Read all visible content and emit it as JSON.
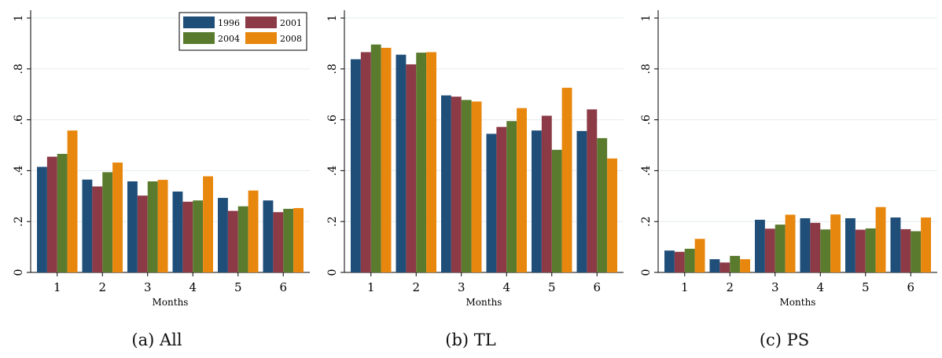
{
  "colors": {
    "1996": "#1f4e79",
    "2001": "#8b3a46",
    "2004": "#5a7a2e",
    "2008": "#e8870e"
  },
  "chart_data": [
    {
      "type": "bar",
      "caption_label": "a",
      "caption_text": "All",
      "xlabel": "Months",
      "ylabel": "",
      "ylim": [
        0,
        1
      ],
      "yticks": [
        "0",
        ".2",
        ".4",
        ".6",
        ".8",
        "1"
      ],
      "categories": [
        "1",
        "2",
        "3",
        "4",
        "5",
        "6"
      ],
      "legend_position": "top-right",
      "series": [
        {
          "name": "1996",
          "values": [
            0.415,
            0.365,
            0.358,
            0.318,
            0.293,
            0.283
          ]
        },
        {
          "name": "2001",
          "values": [
            0.455,
            0.338,
            0.302,
            0.278,
            0.242,
            0.237
          ]
        },
        {
          "name": "2004",
          "values": [
            0.466,
            0.394,
            0.358,
            0.283,
            0.26,
            0.25
          ]
        },
        {
          "name": "2008",
          "values": [
            0.558,
            0.432,
            0.364,
            0.378,
            0.322,
            0.253
          ]
        }
      ]
    },
    {
      "type": "bar",
      "caption_label": "b",
      "caption_text": "TL",
      "xlabel": "Months",
      "ylabel": "",
      "ylim": [
        0,
        1
      ],
      "yticks": [
        "0",
        ".2",
        ".4",
        ".6",
        ".8",
        "1"
      ],
      "categories": [
        "1",
        "2",
        "3",
        "4",
        "5",
        "6"
      ],
      "series": [
        {
          "name": "1996",
          "values": [
            0.838,
            0.856,
            0.696,
            0.545,
            0.558,
            0.556
          ]
        },
        {
          "name": "2001",
          "values": [
            0.866,
            0.818,
            0.691,
            0.572,
            0.616,
            0.641
          ]
        },
        {
          "name": "2004",
          "values": [
            0.896,
            0.864,
            0.678,
            0.595,
            0.482,
            0.528
          ]
        },
        {
          "name": "2008",
          "values": [
            0.883,
            0.866,
            0.672,
            0.646,
            0.726,
            0.448
          ]
        }
      ]
    },
    {
      "type": "bar",
      "caption_label": "c",
      "caption_text": "PS",
      "xlabel": "Months",
      "ylabel": "",
      "ylim": [
        0,
        1
      ],
      "yticks": [
        "0",
        ".2",
        ".4",
        ".6",
        ".8",
        "1"
      ],
      "categories": [
        "1",
        "2",
        "3",
        "4",
        "5",
        "6"
      ],
      "series": [
        {
          "name": "1996",
          "values": [
            0.086,
            0.052,
            0.207,
            0.213,
            0.213,
            0.216
          ]
        },
        {
          "name": "2001",
          "values": [
            0.081,
            0.039,
            0.172,
            0.195,
            0.168,
            0.17
          ]
        },
        {
          "name": "2004",
          "values": [
            0.093,
            0.065,
            0.188,
            0.169,
            0.173,
            0.162
          ]
        },
        {
          "name": "2008",
          "values": [
            0.132,
            0.052,
            0.227,
            0.228,
            0.257,
            0.216
          ]
        }
      ]
    }
  ]
}
